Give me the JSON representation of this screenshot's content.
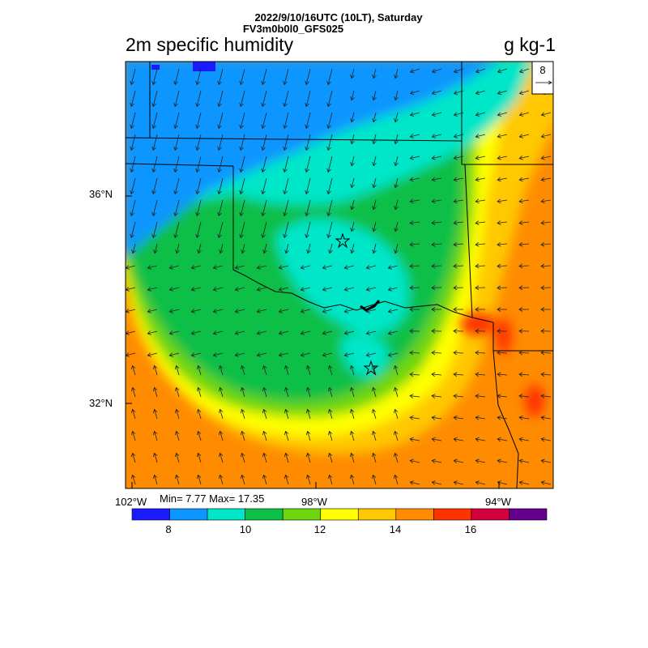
{
  "header": {
    "line1": "2022/9/10/16UTC (10LT), Saturday",
    "line2": "FV3m0b0l0_GFS025",
    "variable": "2m specific humidity",
    "units": "g kg-1"
  },
  "map": {
    "lat_labels": [
      "36°N",
      "32°N"
    ],
    "lon_labels": [
      "102°W",
      "98°W",
      "94°W"
    ],
    "stats": "Min= 7.77 Max= 17.35",
    "reference_vector": "8",
    "wind_direction_note": "northerly over north-west, easterly/south-easterly over east and south"
  },
  "colorbar": {
    "colors": [
      "#1a1aff",
      "#0d96ff",
      "#00e6c8",
      "#0dbf47",
      "#6ed60f",
      "#ffff00",
      "#ffc800",
      "#ff8c00",
      "#ff3300",
      "#d4003c",
      "#64008c"
    ],
    "tick_labels": [
      "8",
      "10",
      "12",
      "14",
      "16"
    ]
  }
}
